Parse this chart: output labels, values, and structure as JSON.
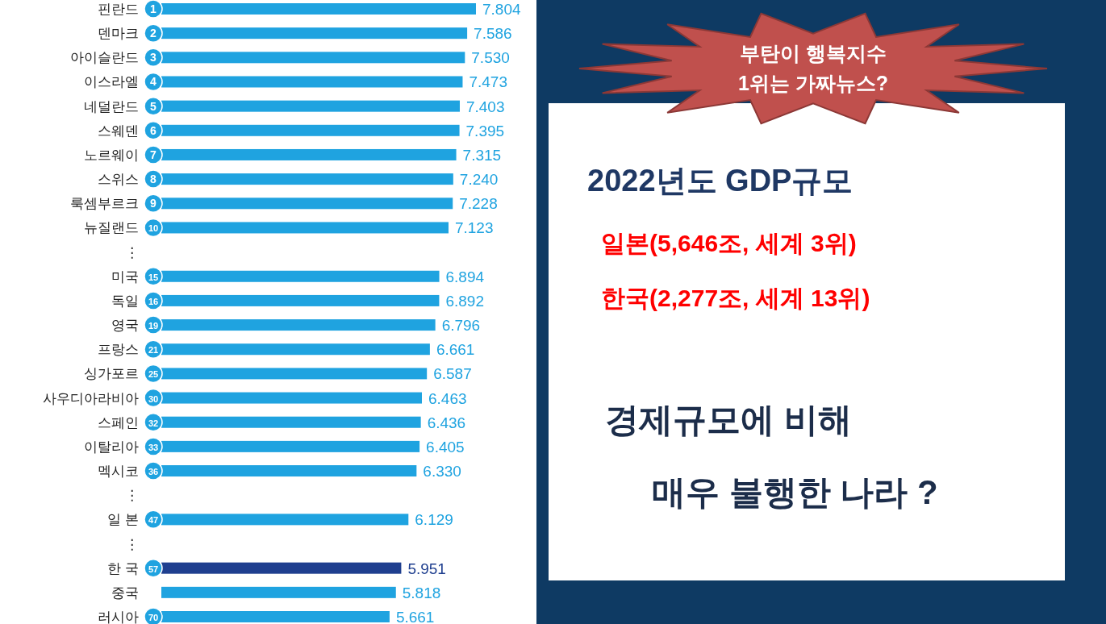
{
  "chart_data": [
    {
      "type": "bar",
      "orientation": "horizontal",
      "value_labels": [
        "7.804",
        "7.586",
        "7.530",
        "7.473",
        "7.403",
        "7.395",
        "7.315",
        "7.240",
        "7.228",
        "7.123",
        null,
        "6.894",
        "6.892",
        "6.796",
        "6.661",
        "6.587",
        "6.463",
        "6.436",
        "6.405",
        "6.330",
        null,
        "6.129",
        null,
        "5.951",
        "5.818",
        "5.661"
      ],
      "categories": [
        "핀란드",
        "덴마크",
        "아이슬란드",
        "이스라엘",
        "네덜란드",
        "스웨덴",
        "노르웨이",
        "스위스",
        "룩셈부르크",
        "뉴질랜드",
        "⋮",
        "미국",
        "독일",
        "영국",
        "프랑스",
        "싱가포르",
        "사우디아라비아",
        "스페인",
        "이탈리아",
        "멕시코",
        "⋮",
        "일 본",
        "⋮",
        "한 국",
        "중국",
        "러시아"
      ],
      "values": [
        7.804,
        7.586,
        7.53,
        7.473,
        7.403,
        7.395,
        7.315,
        7.24,
        7.228,
        7.123,
        null,
        6.894,
        6.892,
        6.796,
        6.661,
        6.587,
        6.463,
        6.436,
        6.405,
        6.33,
        null,
        6.129,
        null,
        5.951,
        5.818,
        5.661
      ],
      "colors": [
        "#1fa3e0",
        "#1fa3e0",
        "#1fa3e0",
        "#1fa3e0",
        "#1fa3e0",
        "#1fa3e0",
        "#1fa3e0",
        "#1fa3e0",
        "#1fa3e0",
        "#1fa3e0",
        null,
        "#1fa3e0",
        "#1fa3e0",
        "#1fa3e0",
        "#1fa3e0",
        "#1fa3e0",
        "#1fa3e0",
        "#1fa3e0",
        "#1fa3e0",
        "#1fa3e0",
        null,
        "#1fa3e0",
        null,
        "#1f3f8f",
        "#1fa3e0",
        "#1fa3e0"
      ],
      "annotations": [
        {
          "text": "1",
          "y": "핀란드"
        },
        {
          "text": "2",
          "y": "덴마크"
        },
        {
          "text": "3",
          "y": "아이슬란드"
        },
        {
          "text": "4",
          "y": "이스라엘"
        },
        {
          "text": "5",
          "y": "네덜란드"
        },
        {
          "text": "6",
          "y": "스웨덴"
        },
        {
          "text": "7",
          "y": "노르웨이"
        },
        {
          "text": "8",
          "y": "스위스"
        },
        {
          "text": "9",
          "y": "룩셈부르크"
        },
        {
          "text": "10",
          "y": "뉴질랜드"
        },
        {
          "text": "15",
          "y": "미국"
        },
        {
          "text": "16",
          "y": "독일"
        },
        {
          "text": "19",
          "y": "영국"
        },
        {
          "text": "21",
          "y": "프랑스"
        },
        {
          "text": "25",
          "y": "싱가포르"
        },
        {
          "text": "30",
          "y": "사우디아라비아"
        },
        {
          "text": "32",
          "y": "스페인"
        },
        {
          "text": "33",
          "y": "이탈리아"
        },
        {
          "text": "36",
          "y": "멕시코"
        },
        {
          "text": "47",
          "y": "일 본"
        },
        {
          "text": "57",
          "y": "한 국"
        },
        {
          "text": "70",
          "y": "러시아"
        }
      ]
    },
    {
      "type": "other",
      "title": "2022년도 GDP규모",
      "annotations": [
        "부탄이 행복지수 1위는 가짜뉴스?",
        "일본(5,646조, 세계 3위)",
        "한국(2,277조, 세계 13위)",
        "경제규모에 비해",
        "매우 불행한 나라 ?"
      ]
    }
  ]
}
